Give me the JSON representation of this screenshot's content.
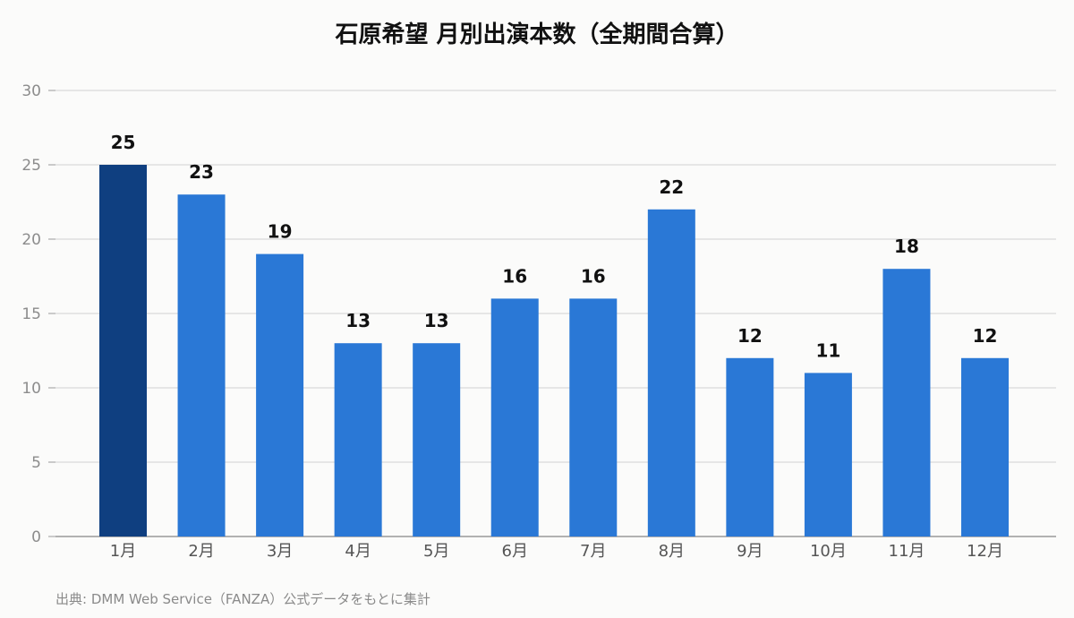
{
  "chart_data": {
    "type": "bar",
    "title": "石原希望 月別出演本数（全期間合算）",
    "categories": [
      "1月",
      "2月",
      "3月",
      "4月",
      "5月",
      "6月",
      "7月",
      "8月",
      "9月",
      "10月",
      "11月",
      "12月"
    ],
    "values": [
      25,
      23,
      19,
      13,
      13,
      16,
      16,
      22,
      12,
      11,
      18,
      12
    ],
    "ylim": [
      0,
      30
    ],
    "yticks": [
      0,
      5,
      10,
      15,
      20,
      25,
      30
    ],
    "xlabel": "",
    "ylabel": "",
    "grid": true,
    "colors": {
      "default": "#2a78d6",
      "highlight": "#0f3f80",
      "grid": "#e0e0e0",
      "axis": "#9a9a9a"
    },
    "highlight_index": 0
  },
  "source_note": "出典: DMM Web Service（FANZA）公式データをもとに集計"
}
